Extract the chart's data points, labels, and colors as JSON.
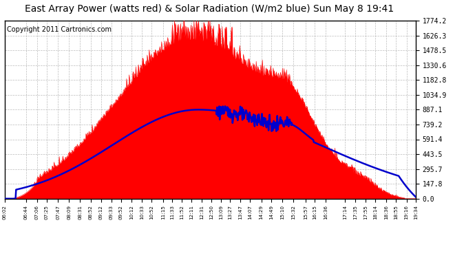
{
  "title": "East Array Power (watts red) & Solar Radiation (W/m2 blue) Sun May 8 19:41",
  "copyright": "Copyright 2011 Cartronics.com",
  "yticks": [
    0.0,
    147.8,
    295.7,
    443.5,
    591.4,
    739.2,
    887.1,
    1034.9,
    1182.8,
    1330.6,
    1478.5,
    1626.3,
    1774.2
  ],
  "ymax": 1774.2,
  "x_labels": [
    "06:02",
    "06:44",
    "07:06",
    "07:25",
    "07:47",
    "08:09",
    "08:31",
    "08:52",
    "09:12",
    "09:33",
    "09:52",
    "10:12",
    "10:33",
    "10:52",
    "11:15",
    "11:33",
    "11:52",
    "12:11",
    "12:31",
    "12:50",
    "13:09",
    "13:27",
    "13:47",
    "14:07",
    "14:29",
    "14:49",
    "15:10",
    "15:32",
    "15:57",
    "16:15",
    "16:36",
    "17:14",
    "17:35",
    "17:55",
    "18:14",
    "18:36",
    "18:55",
    "19:16",
    "19:34"
  ],
  "fill_color": "#FF0000",
  "line_color": "#0000CC",
  "background_color": "#FFFFFF",
  "grid_color": "#AAAAAA",
  "title_fontsize": 10,
  "copyright_fontsize": 7
}
